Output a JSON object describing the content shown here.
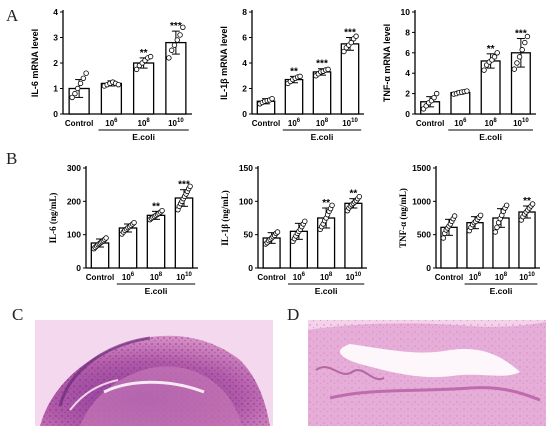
{
  "panel_labels": [
    "A",
    "B",
    "C",
    "D"
  ],
  "group_label": "E.coli",
  "chart_data": [
    {
      "type": "bar",
      "panel": "A",
      "ylabel": "IL-6 mRNA level",
      "categories": [
        "Control",
        "10^6",
        "10^8",
        "10^10"
      ],
      "values": [
        1.0,
        1.2,
        2.0,
        2.8
      ],
      "errors": [
        0.35,
        0.1,
        0.2,
        0.45
      ],
      "points": [
        [
          0.65,
          0.8,
          1.0,
          1.2,
          1.4,
          1.6
        ],
        [
          1.1,
          1.15,
          1.2,
          1.25,
          1.2,
          1.15
        ],
        [
          1.75,
          1.9,
          2.0,
          2.1,
          2.2,
          2.25
        ],
        [
          2.2,
          2.5,
          2.7,
          2.9,
          3.1,
          3.4
        ]
      ],
      "significance": [
        "",
        "",
        "**",
        "***"
      ],
      "ylim": [
        0,
        4
      ],
      "yticks": [
        0,
        1,
        2,
        3,
        4
      ]
    },
    {
      "type": "bar",
      "panel": "A",
      "ylabel": "IL-1β mRNA level",
      "categories": [
        "Control",
        "10^6",
        "10^8",
        "10^10"
      ],
      "values": [
        1.0,
        2.7,
        3.3,
        5.5
      ],
      "errors": [
        0.2,
        0.25,
        0.25,
        0.5
      ],
      "points": [
        [
          0.8,
          0.9,
          1.0,
          1.05,
          1.1,
          1.2
        ],
        [
          2.4,
          2.55,
          2.7,
          2.8,
          2.9,
          2.95
        ],
        [
          3.0,
          3.15,
          3.3,
          3.35,
          3.45,
          3.5
        ],
        [
          4.9,
          5.2,
          5.4,
          5.6,
          5.9,
          6.1
        ]
      ],
      "significance": [
        "",
        "**",
        "***",
        "***"
      ],
      "ylim": [
        0,
        8
      ],
      "yticks": [
        0,
        2,
        4,
        6,
        8
      ]
    },
    {
      "type": "bar",
      "panel": "A",
      "ylabel": "TNF-α mRNA level",
      "categories": [
        "Control",
        "10^6",
        "10^8",
        "10^10"
      ],
      "values": [
        1.2,
        2.1,
        5.2,
        6.0
      ],
      "errors": [
        0.5,
        0.15,
        0.7,
        1.4
      ],
      "points": [
        [
          0.5,
          0.8,
          1.1,
          1.3,
          1.6,
          2.0
        ],
        [
          1.95,
          2.0,
          2.1,
          2.15,
          2.2,
          2.25
        ],
        [
          4.3,
          4.8,
          5.1,
          5.3,
          5.6,
          6.0
        ],
        [
          4.4,
          5.0,
          5.6,
          6.3,
          7.0,
          7.6
        ]
      ],
      "significance": [
        "",
        "",
        "**",
        "***"
      ],
      "ylim": [
        0,
        10
      ],
      "yticks": [
        0,
        2,
        4,
        6,
        8,
        10
      ]
    },
    {
      "type": "bar",
      "panel": "B",
      "ylabel": "IL-6 (ng/mL)",
      "categories": [
        "Control",
        "10^6",
        "10^8",
        "10^10"
      ],
      "values": [
        75,
        120,
        158,
        210
      ],
      "errors": [
        12,
        12,
        12,
        25
      ],
      "points": [
        [
          58,
          62,
          66,
          70,
          73,
          76,
          79,
          82,
          86,
          90
        ],
        [
          102,
          108,
          113,
          117,
          121,
          124,
          128,
          132,
          136
        ],
        [
          145,
          149,
          152,
          155,
          158,
          161,
          164,
          168,
          172
        ],
        [
          175,
          185,
          193,
          200,
          208,
          215,
          222,
          230,
          238,
          245
        ]
      ],
      "significance": [
        "",
        "",
        "**",
        "***"
      ],
      "ylim": [
        0,
        300
      ],
      "yticks": [
        0,
        100,
        200,
        300
      ]
    },
    {
      "type": "bar",
      "panel": "B",
      "ylabel": "IL-1β (ng/mL)",
      "categories": [
        "Control",
        "10^6",
        "10^8",
        "10^10"
      ],
      "values": [
        45,
        55,
        75,
        97
      ],
      "errors": [
        8,
        12,
        15,
        7
      ],
      "points": [
        [
          36,
          38,
          41,
          43,
          45,
          47,
          49,
          52,
          54
        ],
        [
          40,
          44,
          48,
          52,
          55,
          58,
          62,
          66,
          70
        ],
        [
          58,
          62,
          66,
          71,
          75,
          80,
          85,
          89,
          94
        ],
        [
          86,
          90,
          93,
          95,
          97,
          99,
          101,
          104,
          107
        ]
      ],
      "significance": [
        "",
        "",
        "**",
        "**"
      ],
      "ylim": [
        0,
        150
      ],
      "yticks": [
        0,
        50,
        100,
        150
      ]
    },
    {
      "type": "bar",
      "panel": "B",
      "ylabel": "TNF-α (ng/mL)",
      "categories": [
        "Control",
        "10^6",
        "10^8",
        "10^10"
      ],
      "values": [
        610,
        680,
        750,
        840
      ],
      "errors": [
        120,
        90,
        140,
        90
      ],
      "points": [
        [
          450,
          520,
          570,
          600,
          630,
          660,
          700,
          740,
          780
        ],
        [
          560,
          610,
          650,
          680,
          700,
          730,
          760,
          790
        ],
        [
          540,
          610,
          680,
          740,
          790,
          850,
          900,
          940
        ],
        [
          720,
          770,
          810,
          840,
          870,
          900,
          930,
          960
        ]
      ],
      "significance": [
        "",
        "",
        "",
        "**"
      ],
      "ylim": [
        0,
        1500
      ],
      "yticks": [
        0,
        500,
        1000,
        1500
      ]
    }
  ]
}
